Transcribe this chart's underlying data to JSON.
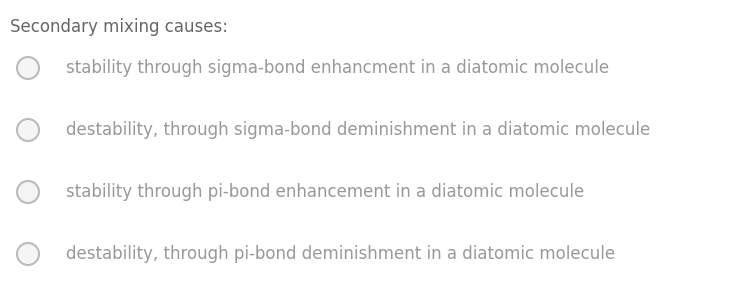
{
  "title": "Secondary mixing causes:",
  "title_fontsize": 12,
  "title_color": "#999999",
  "options": [
    "stability through sigma-bond enhancment in a diatomic molecule",
    "destability, through sigma-bond deminishment in a diatomic molecule",
    "stability through pi-bond enhancement in a diatomic molecule",
    "destability, through pi-bond deminishment in a diatomic molecule"
  ],
  "option_fontsize": 12,
  "option_color": "#999999",
  "title_color_dark": "#666666",
  "circle_edgecolor": "#bbbbbb",
  "circle_facecolor": "#f5f5f5",
  "circle_linewidth": 1.5,
  "background_color": "#ffffff"
}
